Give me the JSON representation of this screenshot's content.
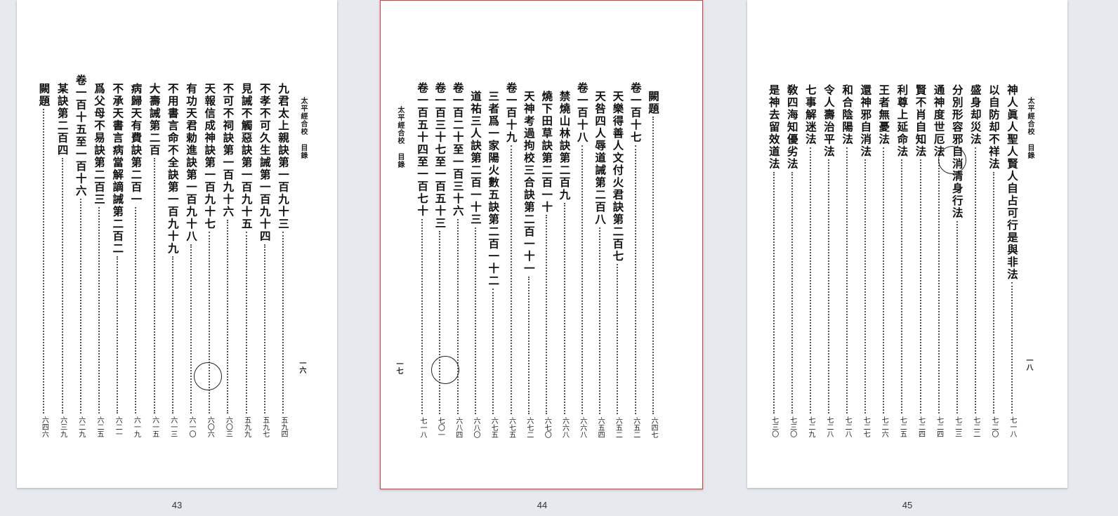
{
  "header": {
    "book": "太平經合校",
    "section": "目錄"
  },
  "pages": [
    {
      "label": "43",
      "folio": "一六",
      "entries": [
        {
          "title": "九君太上親訣第一百九十三",
          "page": "五九四"
        },
        {
          "title": "不孝不可久生誡第一百九十四",
          "page": "五九七"
        },
        {
          "title": "見誡不觸惡訣第一百九十五",
          "page": "五九九"
        },
        {
          "title": "不可不祠訣第一百九十六",
          "page": "六〇三"
        },
        {
          "title": "天報信成神訣第一百九十七",
          "page": "六〇六"
        },
        {
          "title": "有功天君勅進訣第一百九十八",
          "page": "六一〇"
        },
        {
          "title": "不用書言命不全訣第一百九十九",
          "page": "六一三"
        },
        {
          "title": "大壽誡第二百",
          "page": "六一五"
        },
        {
          "title": "病歸天有費訣第二百一",
          "page": "六一九"
        },
        {
          "title": "不承天書言病當解謫誡第二百二",
          "page": "六二一"
        },
        {
          "title": "爲父母不易訣第二百三",
          "page": "六二五"
        },
        {
          "title": "卷一百十五至一百十六",
          "page": "六二九"
        },
        {
          "title": "某訣第二百四",
          "page": "六三九"
        },
        {
          "title": "闕題",
          "page": "六四六"
        }
      ]
    },
    {
      "label": "44",
      "folio": "一七",
      "entries": [
        {
          "title": "闕題",
          "page": "六四七"
        },
        {
          "title": "卷一百十七",
          "page": "六五二"
        },
        {
          "title": "天樂得善人文付火君訣第二百七",
          "page": "六五二"
        },
        {
          "title": "天咎四人辱道誡第二百八",
          "page": "六五四"
        },
        {
          "title": "卷一百十八",
          "page": "六六八"
        },
        {
          "title": "禁燒山林訣第二百九",
          "page": "六六八"
        },
        {
          "title": "燒下田草訣第二百一十",
          "page": "六七〇"
        },
        {
          "title": "天神考過拘校三合訣第二百一十一",
          "page": "六七二"
        },
        {
          "title": "卷一百十九",
          "page": "六七五"
        },
        {
          "title": "三者爲一家陽火數五訣第二百一十二",
          "page": "六七五"
        },
        {
          "title": "道祐三人訣第二百一十三",
          "page": "六八〇"
        },
        {
          "title": "卷一百二十至一百三十六",
          "page": "六八四"
        },
        {
          "title": "卷一百三十七至一百五十三",
          "page": "七〇一"
        },
        {
          "title": "卷一百五十四至一百七十",
          "page": "七一八"
        }
      ]
    },
    {
      "label": "45",
      "folio": "一八",
      "entries": [
        {
          "title": "神人眞人聖人賢人自占可行是與非法",
          "page": "七一八"
        },
        {
          "title": "以自防却不祥法",
          "page": "七二〇"
        },
        {
          "title": "盛身却災法",
          "page": "七二二"
        },
        {
          "title": "分別形容邪自消清身行法",
          "page": "七二三"
        },
        {
          "title": "通神度世厄法",
          "page": "七二四"
        },
        {
          "title": "賢不肖自知法",
          "page": "七二四"
        },
        {
          "title": "利尊上延命法",
          "page": "七二五"
        },
        {
          "title": "王者無憂法",
          "page": "七二六"
        },
        {
          "title": "還神邪自消法",
          "page": "七二七"
        },
        {
          "title": "和合陰陽法",
          "page": "七二八"
        },
        {
          "title": "令人壽治平法",
          "page": "七二八"
        },
        {
          "title": "七事解迷法",
          "page": "七二九"
        },
        {
          "title": "敎四海知優劣法",
          "page": "七三〇"
        },
        {
          "title": "是神去留效道法",
          "page": "七三〇"
        }
      ]
    }
  ]
}
